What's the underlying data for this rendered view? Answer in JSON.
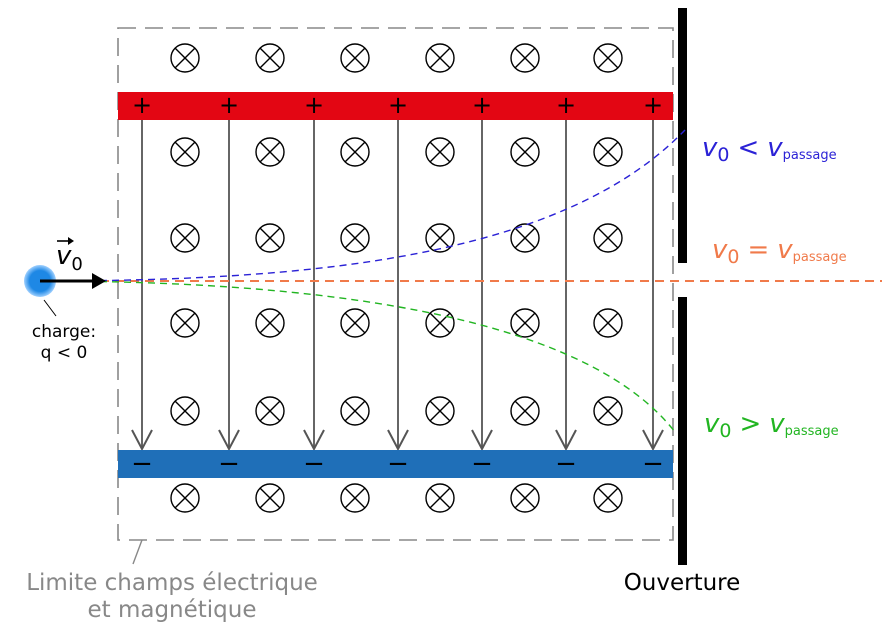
{
  "velocity_vector": {
    "symbol": "v",
    "subscript": "0"
  },
  "charge": {
    "line1": "charge:",
    "line2": "q < 0"
  },
  "plates": {
    "positive_sign": "+",
    "negative_sign": "−"
  },
  "conditions": {
    "less": {
      "lhs": "v",
      "lhs_sub": "0",
      "op": "<",
      "rhs": "v",
      "rhs_sub": "passage",
      "color": "#2b22d6"
    },
    "equal": {
      "lhs": "v",
      "lhs_sub": "0",
      "op": "=",
      "rhs": "v",
      "rhs_sub": "passage",
      "color": "#f07a4a"
    },
    "greater": {
      "lhs": "v",
      "lhs_sub": "0",
      "op": ">",
      "rhs": "v",
      "rhs_sub": "passage",
      "color": "#22b522"
    }
  },
  "field_boundary_label": {
    "line1": "Limite champs électrique",
    "line2": "et magnétique"
  },
  "opening_label": "Ouverture",
  "colors": {
    "positive_plate": "#e30613",
    "negative_plate": "#1f6fb8",
    "charge": "#1e88e5",
    "boundary": "#888888",
    "e_field_arrow": "#555555",
    "wall": "#000000"
  }
}
